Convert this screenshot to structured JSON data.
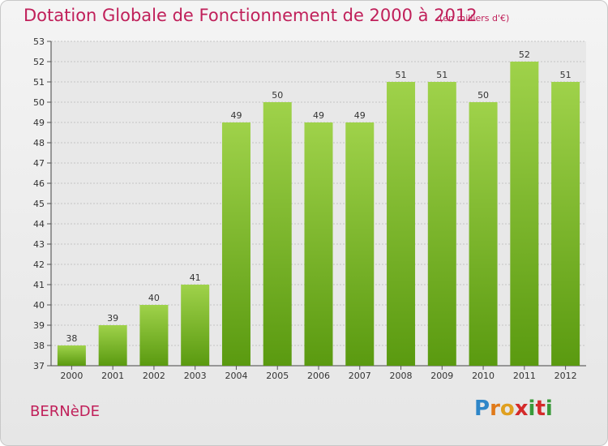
{
  "title": "Dotation Globale de Fonctionnement de 2000 à 2012",
  "subtitle": "(en milliers d'€)",
  "commune": "BERNèDE",
  "logo": {
    "letters": [
      "P",
      "r",
      "o",
      "x",
      "i",
      "t",
      "i"
    ],
    "colors": [
      "#2e86c8",
      "#e07a1a",
      "#e0a020",
      "#d42a2a",
      "#3a9a3a",
      "#d42a2a",
      "#3a9a3a"
    ]
  },
  "colors": {
    "title": "#c0205a",
    "bar_top": "#9fd24a",
    "bar_bottom": "#5a9a10"
  },
  "chart_data": {
    "type": "bar",
    "categories": [
      "2000",
      "2001",
      "2002",
      "2003",
      "2004",
      "2005",
      "2006",
      "2007",
      "2008",
      "2009",
      "2010",
      "2011",
      "2012"
    ],
    "values": [
      38,
      39,
      40,
      41,
      49,
      50,
      49,
      49,
      51,
      51,
      50,
      52,
      51
    ],
    "title": "Dotation Globale de Fonctionnement de 2000 à 2012",
    "subtitle": "(en milliers d'€)",
    "xlabel": "",
    "ylabel": "",
    "ylim": [
      37,
      53
    ],
    "yticks": [
      37,
      38,
      39,
      40,
      41,
      42,
      43,
      44,
      45,
      46,
      47,
      48,
      49,
      50,
      51,
      52,
      53
    ],
    "grid": true,
    "data_labels": true
  }
}
